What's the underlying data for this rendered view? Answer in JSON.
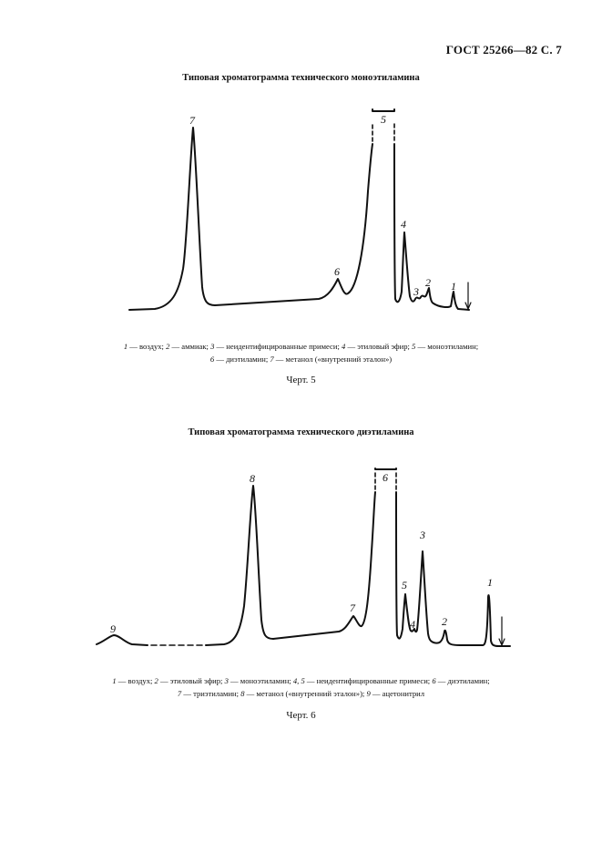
{
  "header": {
    "text": "ГОСТ 25266—82 С. 7"
  },
  "figures": [
    {
      "title": "Типовая хроматограмма технического моноэтиламина",
      "peak_labels": [
        "7",
        "5",
        "6",
        "4",
        "3",
        "2",
        "1"
      ],
      "caption_lines": [
        [
          {
            "num": "1",
            "text": " — воздух; "
          },
          {
            "num": "2",
            "text": " — аммиак; "
          },
          {
            "num": "3",
            "text": " — неидентифицированные примеси; "
          },
          {
            "num": "4",
            "text": " — этиловый эфир; "
          },
          {
            "num": "5",
            "text": " — моноэтиламин;"
          }
        ],
        [
          {
            "num": "6",
            "text": " — диэтиламин; "
          },
          {
            "num": "7",
            "text": " — метанол («внутренний эталон»)"
          }
        ]
      ],
      "label": "Черт. 5"
    },
    {
      "title": "Типовая хроматограмма технического диэтиламина",
      "peak_labels": [
        "9",
        "8",
        "6",
        "7",
        "5",
        "4",
        "3",
        "2",
        "1"
      ],
      "caption_lines": [
        [
          {
            "num": "1",
            "text": " — воздух; "
          },
          {
            "num": "2",
            "text": " — этиловый эфир; "
          },
          {
            "num": "3",
            "text": " — моноэтиламин; "
          },
          {
            "num": "4, 5",
            "text": " — неидентифицированные примеси; "
          },
          {
            "num": "6",
            "text": " — диэтиламин;"
          }
        ],
        [
          {
            "num": "7",
            "text": " — триэтиламин; "
          },
          {
            "num": "8",
            "text": " — метанол («внутренний эталон»); "
          },
          {
            "num": "9",
            "text": " — ацетонитрил"
          }
        ]
      ],
      "label": "Черт. 6"
    }
  ]
}
